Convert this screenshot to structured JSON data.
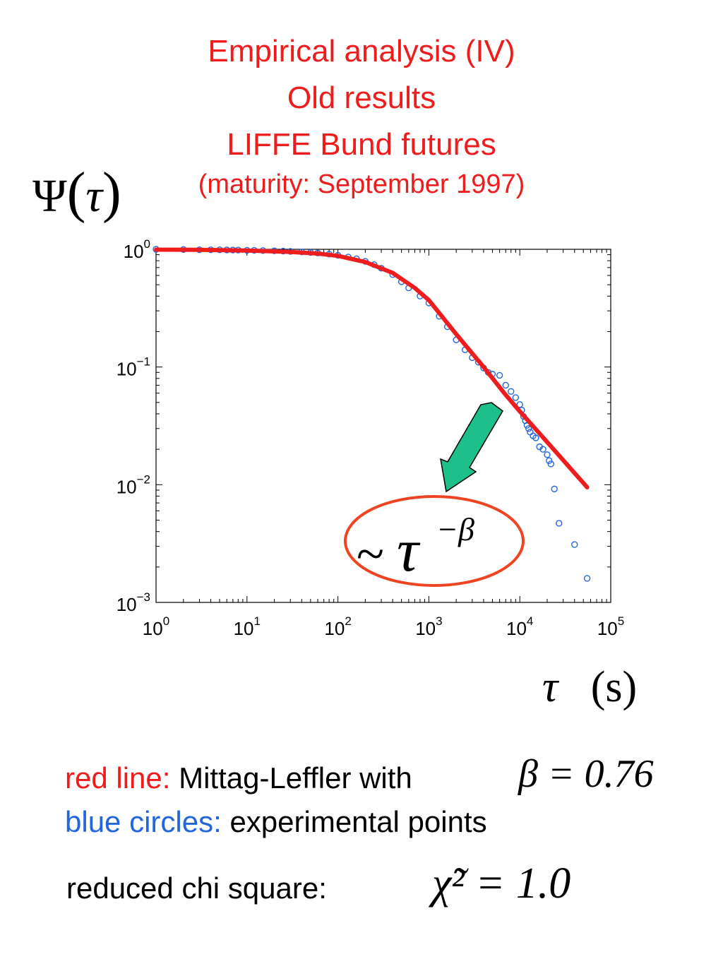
{
  "title": {
    "line1": "Empirical analysis (IV)",
    "line2": "Old results",
    "line3": "LIFFE Bund futures",
    "line4": "(maturity: September 1997)"
  },
  "axis_labels": {
    "y_symbol": "Ψ",
    "y_arg": "τ",
    "x_symbol": "τ",
    "x_unit": "(s)"
  },
  "annotation": {
    "tilde": "~",
    "tau": "τ",
    "exponent": "−β"
  },
  "legend": {
    "red_prefix": "red line:",
    "red_text": "Mittag-Leffler with",
    "beta_equation": "β = 0.76",
    "blue_prefix": "blue circles:",
    "blue_text": "experimental points",
    "chi_label": "reduced chi square:",
    "chi_equation": "χ̃² = 1.0"
  },
  "colors": {
    "red": "#ee1c1c",
    "blue": "#2266dd",
    "arrow": "#1dbf8a"
  },
  "chart_data": {
    "type": "scatter",
    "x_scale": "log",
    "y_scale": "log",
    "xlim": [
      1,
      100000
    ],
    "ylim": [
      0.001,
      1
    ],
    "x_ticks": [
      {
        "base": "10",
        "exp": "0"
      },
      {
        "base": "10",
        "exp": "1"
      },
      {
        "base": "10",
        "exp": "2"
      },
      {
        "base": "10",
        "exp": "3"
      },
      {
        "base": "10",
        "exp": "4"
      },
      {
        "base": "10",
        "exp": "5"
      }
    ],
    "y_ticks": [
      {
        "base": "10",
        "exp": "0"
      },
      {
        "base": "10",
        "exp": "−1"
      },
      {
        "base": "10",
        "exp": "−2"
      },
      {
        "base": "10",
        "exp": "−3"
      }
    ],
    "series": [
      {
        "name": "red line: Mittag-Leffler",
        "kind": "line",
        "color": "#ee1c1c",
        "beta": 0.76,
        "x": [
          1,
          3,
          10,
          30,
          60,
          100,
          200,
          400,
          700,
          1000,
          2000,
          4000,
          7000,
          10000,
          20000,
          55000
        ],
        "y": [
          0.993,
          0.99,
          0.975,
          0.95,
          0.92,
          0.88,
          0.78,
          0.63,
          0.47,
          0.37,
          0.19,
          0.1,
          0.058,
          0.042,
          0.023,
          0.0095
        ]
      },
      {
        "name": "blue circles: experimental points",
        "kind": "scatter",
        "color": "#2266dd",
        "x": [
          1,
          2,
          3,
          4,
          5,
          6,
          7,
          8,
          10,
          12,
          15,
          20,
          25,
          30,
          40,
          50,
          60,
          80,
          100,
          130,
          160,
          200,
          250,
          300,
          400,
          500,
          600,
          800,
          1000,
          1300,
          1600,
          2000,
          2500,
          3000,
          3500,
          4000,
          4500,
          5000,
          6000,
          7000,
          8000,
          9000,
          10000,
          10500,
          11000,
          11500,
          12000,
          12500,
          13000,
          14000,
          15000,
          16500,
          18000,
          20000,
          21000,
          22000,
          24000,
          27000,
          40000,
          55000
        ],
        "y": [
          1,
          0.995,
          0.99,
          0.99,
          0.99,
          0.988,
          0.985,
          0.985,
          0.98,
          0.98,
          0.975,
          0.97,
          0.965,
          0.96,
          0.95,
          0.94,
          0.93,
          0.91,
          0.89,
          0.86,
          0.83,
          0.79,
          0.74,
          0.69,
          0.61,
          0.53,
          0.47,
          0.4,
          0.35,
          0.27,
          0.22,
          0.17,
          0.14,
          0.12,
          0.11,
          0.098,
          0.09,
          0.087,
          0.085,
          0.07,
          0.062,
          0.055,
          0.048,
          0.043,
          0.038,
          0.035,
          0.032,
          0.03,
          0.028,
          0.026,
          0.025,
          0.021,
          0.02,
          0.018,
          0.016,
          0.015,
          0.0092,
          0.0047,
          0.0031,
          0.0016
        ]
      }
    ]
  }
}
